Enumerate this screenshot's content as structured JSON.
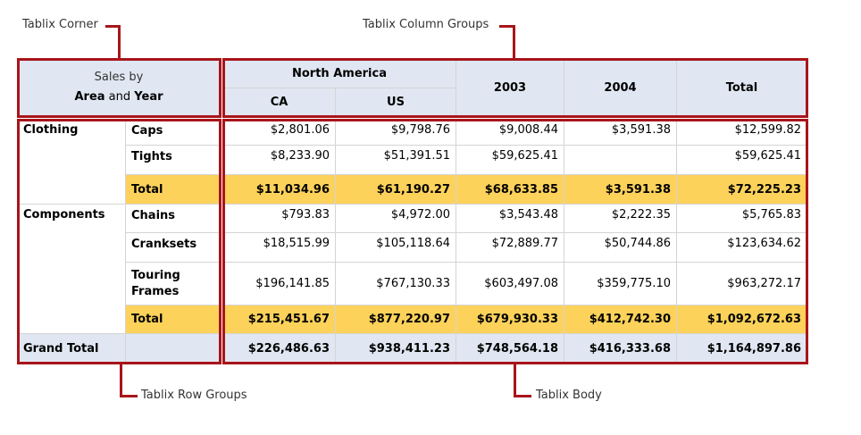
{
  "callouts": {
    "corner": "Tablix Corner",
    "column_groups": "Tablix Column Groups",
    "row_groups": "Tablix Row Groups",
    "body": "Tablix Body"
  },
  "colors": {
    "outline": "#a8151b",
    "header": "#e0e7f2",
    "subtotal": "#fdd25a"
  },
  "corner": {
    "line1": "Sales by",
    "area": "Area",
    "and": " and ",
    "year": "Year"
  },
  "column_headers": {
    "group": "North America",
    "ca": "CA",
    "us": "US",
    "y2003": "2003",
    "y2004": "2004",
    "total": "Total"
  },
  "rows": [
    {
      "group": "Clothing",
      "item": "Caps",
      "values": [
        "$2,801.06",
        "$9,798.76",
        "$9,008.44",
        "$3,591.38",
        "$12,599.82"
      ],
      "type": "detail"
    },
    {
      "group": "",
      "item": "Tights",
      "values": [
        "$8,233.90",
        "$51,391.51",
        "$59,625.41",
        "",
        "$59,625.41"
      ],
      "type": "detail"
    },
    {
      "group": "",
      "item": "Total",
      "values": [
        "$11,034.96",
        "$61,190.27",
        "$68,633.85",
        "$3,591.38",
        "$72,225.23"
      ],
      "type": "total"
    },
    {
      "group": "Components",
      "item": "Chains",
      "values": [
        "$793.83",
        "$4,972.00",
        "$3,543.48",
        "$2,222.35",
        "$5,765.83"
      ],
      "type": "detail"
    },
    {
      "group": "",
      "item": "Cranksets",
      "values": [
        "$18,515.99",
        "$105,118.64",
        "$72,889.77",
        "$50,744.86",
        "$123,634.62"
      ],
      "type": "detail"
    },
    {
      "group": "",
      "item": "Touring Frames",
      "values": [
        "$196,141.85",
        "$767,130.33",
        "$603,497.08",
        "$359,775.10",
        "$963,272.17"
      ],
      "type": "detail"
    },
    {
      "group": "",
      "item": "Total",
      "values": [
        "$215,451.67",
        "$877,220.97",
        "$679,930.33",
        "$412,742.30",
        "$1,092,672.63"
      ],
      "type": "total"
    },
    {
      "group": "Grand Total",
      "item": "",
      "values": [
        "$226,486.63",
        "$938,411.23",
        "$748,564.18",
        "$416,333.68",
        "$1,164,897.86"
      ],
      "type": "grand"
    }
  ]
}
